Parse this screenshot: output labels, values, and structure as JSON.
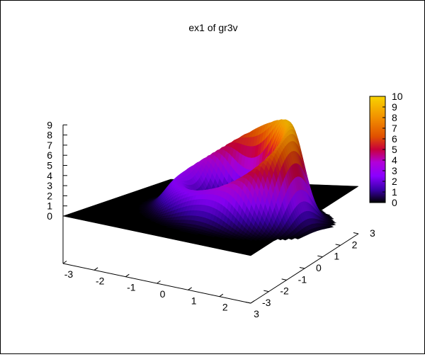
{
  "chart_data": {
    "type": "surface3d",
    "title": "ex1 of gr3v",
    "xlabel": "",
    "ylabel": "",
    "zlabel": "",
    "x_ticks": [
      "-3",
      "-2",
      "-1",
      "0",
      "1",
      "2",
      "3"
    ],
    "y_ticks": [
      "-3",
      "-2",
      "-1",
      "0",
      "1",
      "2",
      "3"
    ],
    "z_ticks": [
      "0",
      "1",
      "2",
      "3",
      "4",
      "5",
      "6",
      "7",
      "8",
      "9"
    ],
    "colorbar_ticks": [
      "0",
      "1",
      "2",
      "3",
      "4",
      "5",
      "6",
      "7",
      "8",
      "9",
      "10"
    ],
    "xlim": [
      -3,
      3
    ],
    "ylim": [
      -3,
      3
    ],
    "zlim": [
      0,
      9
    ],
    "color_range": [
      0,
      10
    ],
    "palette": [
      "#000000",
      "#3a00a8",
      "#8a00ff",
      "#b200d8",
      "#c8003c",
      "#e05000",
      "#f29000",
      "#f8d400"
    ],
    "surface": {
      "shape": "ring-shaped ridge (tilted torus)",
      "base_level": 0,
      "max_height": 9.5,
      "lower_height": 3
    },
    "grid": false,
    "legend": "colorbar right"
  }
}
